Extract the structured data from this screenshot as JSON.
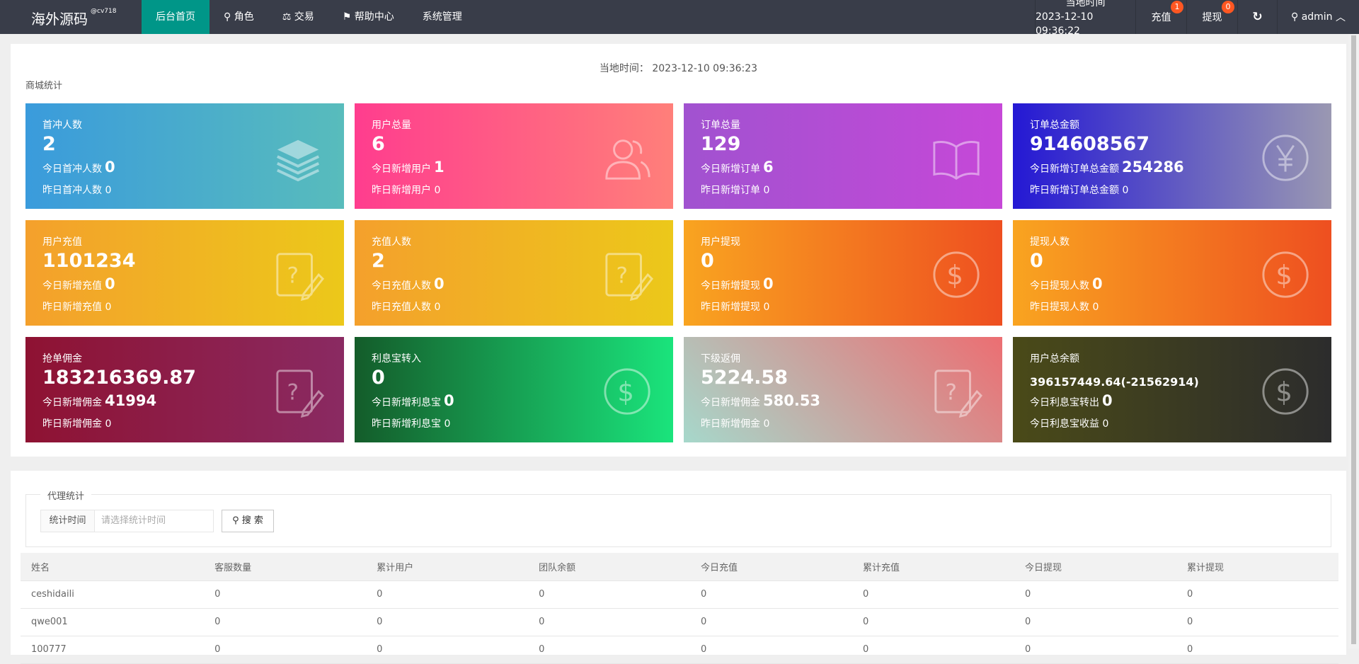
{
  "header": {
    "logo": "海外源码",
    "logo_tag": "@cv718",
    "nav": [
      "后台首页",
      "角色",
      "交易",
      "帮助中心",
      "系统管理"
    ],
    "time_label": "当地时间",
    "time_value": "2023-12-10 09:36:22",
    "recharge": "充值",
    "recharge_badge": "1",
    "withdraw": "提现",
    "withdraw_badge": "0",
    "user": "admin"
  },
  "stats": {
    "local_time": "当地时间： 2023-12-10 09:36:23",
    "section": "商城统计",
    "cards": [
      {
        "title": "首冲人数",
        "value": "2",
        "sub1_label": "今日首冲人数",
        "sub1_value": "0",
        "sub2": "昨日首冲人数 0",
        "icon": "layers-icon",
        "colors": [
          "#3a9bdc",
          "#58bcbc"
        ]
      },
      {
        "title": "用户总量",
        "value": "6",
        "sub1_label": "今日新增用户",
        "sub1_value": "1",
        "sub2": "昨日新增用户 0",
        "icon": "users-icon",
        "colors": [
          "#ff3d8e",
          "#ff7f7a"
        ]
      },
      {
        "title": "订单总量",
        "value": "129",
        "sub1_label": "今日新增订单",
        "sub1_value": "6",
        "sub2": "昨日新增订单 0",
        "icon": "book-icon",
        "colors": [
          "#a152d0",
          "#c648d8"
        ]
      },
      {
        "title": "订单总金额",
        "value": "914608567",
        "sub1_label": "今日新增订单总金额",
        "sub1_value": "254286",
        "sub2": "昨日新增订单总金额 0",
        "icon": "yen-circle-icon",
        "colors": [
          "#2418d4",
          "#9a98b2"
        ]
      },
      {
        "title": "用户充值",
        "value": "1101234",
        "sub1_label": "今日新增充值",
        "sub1_value": "0",
        "sub2": "昨日新增充值 0",
        "icon": "edit-question-icon",
        "colors": [
          "#f4a02c",
          "#ecc81a"
        ]
      },
      {
        "title": "充值人数",
        "value": "2",
        "sub1_label": "今日充值人数",
        "sub1_value": "0",
        "sub2": "昨日充值人数 0",
        "icon": "edit-question-icon",
        "colors": [
          "#f4a02c",
          "#ecc81a"
        ]
      },
      {
        "title": "用户提现",
        "value": "0",
        "sub1_label": "今日新增提现",
        "sub1_value": "0",
        "sub2": "昨日新增提现 0",
        "icon": "dollar-circle-icon",
        "colors": [
          "#f9a420",
          "#ee4f20"
        ]
      },
      {
        "title": "提现人数",
        "value": "0",
        "sub1_label": "今日提现人数",
        "sub1_value": "0",
        "sub2": "昨日提现人数 0",
        "icon": "dollar-circle-icon",
        "colors": [
          "#f9a420",
          "#ee4f20"
        ]
      },
      {
        "title": "抢单佣金",
        "value": "183216369.87",
        "sub1_label": "今日新增佣金",
        "sub1_value": "41994",
        "sub2": "昨日新增佣金 0",
        "icon": "edit-question-icon",
        "colors": [
          "#8e1232",
          "#8a2a62"
        ]
      },
      {
        "title": "利息宝转入",
        "value": "0",
        "sub1_label": "今日新增利息宝",
        "sub1_value": "0",
        "sub2": "昨日新增利息宝 0",
        "icon": "dollar-circle-icon",
        "colors": [
          "#145c2a",
          "#1ae47c"
        ]
      },
      {
        "title": "下级返佣",
        "value": "5224.58",
        "sub1_label": "今日新增佣金",
        "sub1_value": "580.53",
        "sub2": "昨日新增佣金 0",
        "icon": "edit-question-icon",
        "colors": [
          "#a6d8cb",
          "#ec6e72"
        ]
      },
      {
        "title": "用户总余额",
        "value": "396157449.64(-21562914)",
        "sub1_label": "今日利息宝转出",
        "sub1_value": "0",
        "sub2": "今日利息宝收益 0",
        "icon": "dollar-circle-icon",
        "colors": [
          "#4a4a18",
          "#2c2c2c"
        ]
      }
    ]
  },
  "agent": {
    "legend": "代理统计",
    "time_label": "统计时间",
    "time_placeholder": "请选择统计时间",
    "search": "搜 索",
    "columns": [
      "姓名",
      "客服数量",
      "累计用户",
      "团队余额",
      "今日充值",
      "累计充值",
      "今日提现",
      "累计提现"
    ],
    "rows": [
      [
        "ceshidaili",
        "0",
        "0",
        "0",
        "0",
        "0",
        "0",
        "0"
      ],
      [
        "qwe001",
        "0",
        "0",
        "0",
        "0",
        "0",
        "0",
        "0"
      ],
      [
        "100777",
        "0",
        "0",
        "0",
        "0",
        "0",
        "0",
        "0"
      ]
    ]
  }
}
